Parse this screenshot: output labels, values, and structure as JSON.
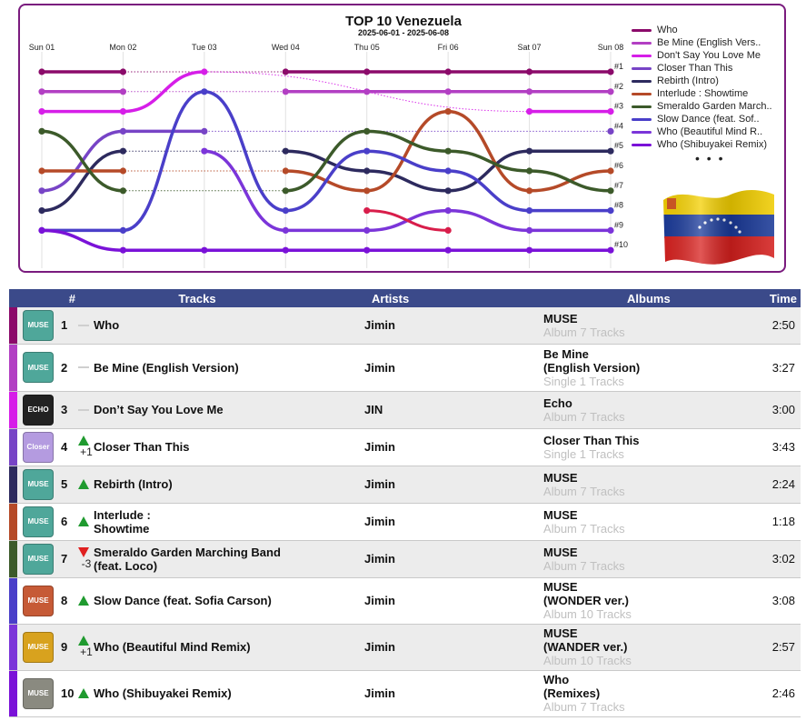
{
  "chart_data": {
    "type": "line",
    "title": "TOP 10 Venezuela",
    "subtitle": "2025-06-01 - 2025-06-08",
    "categories": [
      "Sun 01",
      "Mon 02",
      "Tue 03",
      "Wed 04",
      "Thu 05",
      "Fri 06",
      "Sat 07",
      "Sun 08"
    ],
    "rank_labels": [
      "#1",
      "#2",
      "#3",
      "#4",
      "#5",
      "#6",
      "#7",
      "#8",
      "#9",
      "#10"
    ],
    "ylim": [
      1,
      10
    ],
    "y_inverted": true,
    "legend_position": "right",
    "legend_more": "• • •",
    "series": [
      {
        "name": "Who",
        "color": "#8b0a6a",
        "values": [
          1,
          1,
          null,
          1,
          1,
          1,
          1,
          1
        ]
      },
      {
        "name": "Be Mine (English Version)",
        "color": "#b23fc3",
        "values": [
          2,
          2,
          null,
          2,
          2,
          2,
          2,
          2
        ]
      },
      {
        "name": "Don't Say You Love Me",
        "color": "#d61ee8",
        "values": [
          3,
          3,
          1,
          null,
          null,
          null,
          3,
          3
        ]
      },
      {
        "name": "Closer Than This",
        "color": "#7744c6",
        "values": [
          7,
          4,
          4,
          null,
          null,
          null,
          null,
          4
        ]
      },
      {
        "name": "Rebirth (Intro)",
        "color": "#2d2a5e",
        "values": [
          8,
          5,
          null,
          5,
          6,
          7,
          5,
          5
        ]
      },
      {
        "name": "Interlude : Showtime",
        "color": "#b54a28",
        "values": [
          6,
          6,
          null,
          6,
          7,
          3,
          7,
          6
        ]
      },
      {
        "name": "Smeraldo Garden Marching Band (feat. Loco)",
        "color": "#3c5a2a",
        "values": [
          4,
          7,
          null,
          7,
          4,
          5,
          6,
          7
        ]
      },
      {
        "name": "Slow Dance (feat. Sofia Carson)",
        "color": "#4a3fc9",
        "values": [
          9,
          9,
          2,
          8,
          5,
          6,
          8,
          8
        ]
      },
      {
        "name": "Who (Beautiful Mind Remix)",
        "color": "#7b35d9",
        "values": [
          null,
          null,
          5,
          9,
          9,
          8,
          9,
          9
        ]
      },
      {
        "name": "Who (Shibuyakei Remix)",
        "color": "#7a12d8",
        "values": [
          9,
          10,
          10,
          10,
          10,
          10,
          10,
          10
        ]
      }
    ],
    "extra_segments": [
      {
        "color": "#d81d4a",
        "points": [
          [
            4,
            8
          ],
          [
            5,
            9
          ]
        ]
      }
    ],
    "dotted_links": true
  },
  "table": {
    "headers": {
      "rank": "#",
      "tracks": "Tracks",
      "artists": "Artists",
      "albums": "Albums",
      "time": "Time"
    },
    "rows": [
      {
        "rank": "1",
        "trend": "same",
        "delta": "",
        "track": "Who",
        "artist": "Jimin",
        "album": "MUSE",
        "album_sub": "Album 7 Tracks",
        "time": "2:50",
        "color": "#8b0a6a",
        "thumb": "MUSE",
        "thumb_bg": "#4fa79a"
      },
      {
        "rank": "2",
        "trend": "same",
        "delta": "",
        "track": "Be Mine (English Version)",
        "artist": "Jimin",
        "album": "Be Mine\n(English Version)",
        "album_sub": "Single 1 Tracks",
        "time": "3:27",
        "color": "#b23fc3",
        "thumb": "MUSE",
        "thumb_bg": "#4fa79a"
      },
      {
        "rank": "3",
        "trend": "same",
        "delta": "",
        "track": "Don’t Say You Love Me",
        "artist": "JIN",
        "album": "Echo",
        "album_sub": "Album 7 Tracks",
        "time": "3:00",
        "color": "#d61ee8",
        "thumb": "ECHO",
        "thumb_bg": "#222222"
      },
      {
        "rank": "4",
        "trend": "up",
        "delta": "+1",
        "track": "Closer Than This",
        "artist": "Jimin",
        "album": "Closer Than This",
        "album_sub": "Single 1 Tracks",
        "time": "3:43",
        "color": "#7744c6",
        "thumb": "Closer",
        "thumb_bg": "#b49be0"
      },
      {
        "rank": "5",
        "trend": "up",
        "delta": "",
        "track": "Rebirth (Intro)",
        "artist": "Jimin",
        "album": "MUSE",
        "album_sub": "Album 7 Tracks",
        "time": "2:24",
        "color": "#2d2a5e",
        "thumb": "MUSE",
        "thumb_bg": "#4fa79a"
      },
      {
        "rank": "6",
        "trend": "up",
        "delta": "",
        "track": "Interlude :\nShowtime",
        "artist": "Jimin",
        "album": "MUSE",
        "album_sub": "Album 7 Tracks",
        "time": "1:18",
        "color": "#b54a28",
        "thumb": "MUSE",
        "thumb_bg": "#4fa79a"
      },
      {
        "rank": "7",
        "trend": "down",
        "delta": "-3",
        "track": "Smeraldo Garden Marching Band\n(feat. Loco)",
        "artist": "Jimin",
        "album": "MUSE",
        "album_sub": "Album 7 Tracks",
        "time": "3:02",
        "color": "#3c5a2a",
        "thumb": "MUSE",
        "thumb_bg": "#4fa79a"
      },
      {
        "rank": "8",
        "trend": "up",
        "delta": "",
        "track": "Slow Dance (feat. Sofia Carson)",
        "artist": "Jimin",
        "album": "MUSE\n(WONDER ver.)",
        "album_sub": "Album 10 Tracks",
        "time": "3:08",
        "color": "#4a3fc9",
        "thumb": "MUSE",
        "thumb_bg": "#c65a36"
      },
      {
        "rank": "9",
        "trend": "up",
        "delta": "+1",
        "track": "Who (Beautiful Mind Remix)",
        "artist": "Jimin",
        "album": "MUSE\n(WANDER ver.)",
        "album_sub": "Album 10 Tracks",
        "time": "2:57",
        "color": "#7b35d9",
        "thumb": "MUSE",
        "thumb_bg": "#d8a21e"
      },
      {
        "rank": "10",
        "trend": "up",
        "delta": "",
        "track": "Who (Shibuyakei Remix)",
        "artist": "Jimin",
        "album": "Who\n(Remixes)",
        "album_sub": "Album 7 Tracks",
        "time": "2:46",
        "color": "#7a12d8",
        "thumb": "MUSE",
        "thumb_bg": "#8a8a80"
      }
    ]
  },
  "flag": {
    "name": "venezuela-flag",
    "colors": [
      "#f4d000",
      "#1a3a9a",
      "#d8201e"
    ]
  }
}
